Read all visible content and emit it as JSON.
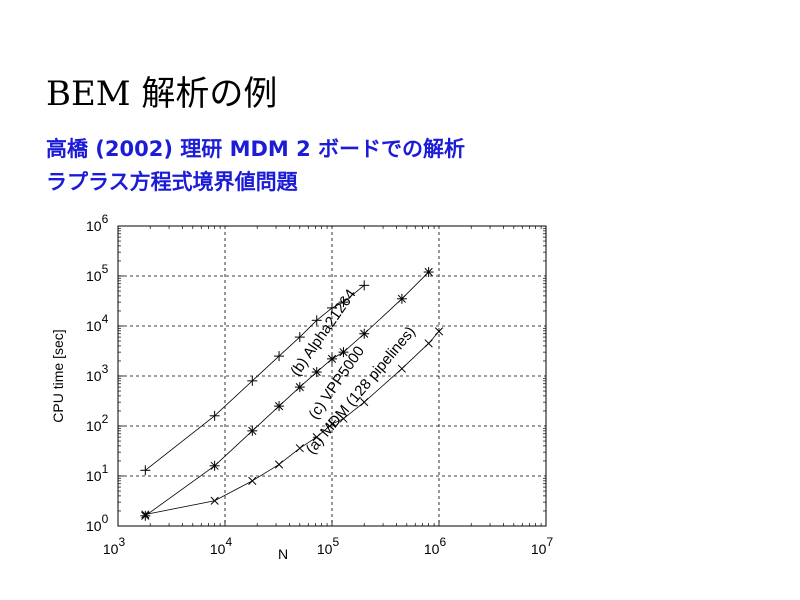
{
  "slide": {
    "title": "BEM 解析の例",
    "subtitle_line1": "高橋 (2002) 理研 MDM 2 ボードでの解析",
    "subtitle_line2": "ラプラス方程式境界値問題"
  },
  "chart_data": {
    "type": "line",
    "xlabel": "N",
    "ylabel": "CPU time [sec]",
    "xscale": "log",
    "yscale": "log",
    "xlim": [
      1000,
      10000000
    ],
    "ylim": [
      1,
      1000000
    ],
    "x_tick_exponents": [
      3,
      4,
      5,
      6,
      7
    ],
    "y_tick_exponents": [
      0,
      1,
      2,
      3,
      4,
      5,
      6
    ],
    "tick_base": "10",
    "grid": "dashed",
    "series": [
      {
        "name": "(b) Alpha21264",
        "marker": "+",
        "x": [
          1800,
          8000,
          18000,
          32000,
          50000,
          72000,
          100000,
          128000,
          200000
        ],
        "y": [
          13,
          160,
          800,
          2500,
          6000,
          13000,
          23000,
          30000,
          65000
        ]
      },
      {
        "name": "(c) VPP5000",
        "marker": "*",
        "x": [
          1800,
          8000,
          18000,
          32000,
          50000,
          72000,
          100000,
          128000,
          200000,
          450000,
          800000
        ],
        "y": [
          1.6,
          16,
          80,
          250,
          600,
          1200,
          2200,
          3000,
          7000,
          35000,
          120000
        ]
      },
      {
        "name": "(a) MDM (128 pipelines)",
        "marker": "x",
        "x": [
          1800,
          8000,
          18000,
          32000,
          50000,
          72000,
          100000,
          128000,
          200000,
          450000,
          800000,
          1000000
        ],
        "y": [
          1.7,
          3.2,
          8,
          17,
          36,
          60,
          110,
          140,
          300,
          1400,
          4500,
          7800
        ]
      }
    ],
    "annotations": [
      {
        "text": "(b) Alpha21264",
        "series": 0,
        "x": 90000,
        "y": 6500,
        "angle": -55
      },
      {
        "text": "(c) VPP5000",
        "series": 1,
        "x": 120000,
        "y": 650,
        "angle": -55
      },
      {
        "text": "(a) MDM (128 pipelines)",
        "series": 2,
        "x": 200000,
        "y": 450,
        "angle": -50
      }
    ]
  }
}
